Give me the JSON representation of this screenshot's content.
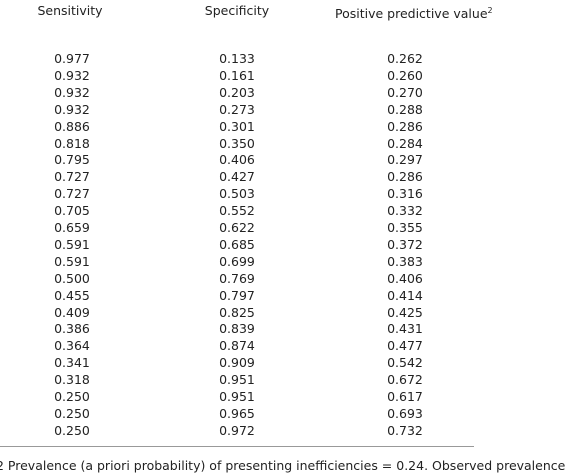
{
  "table": {
    "headers": [
      "Sensitivity",
      "Specificity",
      "Positive predictive value"
    ],
    "header_note": "2",
    "rows": [
      [
        "0.977",
        "0.133",
        "0.262"
      ],
      [
        "0.932",
        "0.161",
        "0.260"
      ],
      [
        "0.932",
        "0.203",
        "0.270"
      ],
      [
        "0.932",
        "0.273",
        "0.288"
      ],
      [
        "0.886",
        "0.301",
        "0.286"
      ],
      [
        "0.818",
        "0.350",
        "0.284"
      ],
      [
        "0.795",
        "0.406",
        "0.297"
      ],
      [
        "0.727",
        "0.427",
        "0.286"
      ],
      [
        "0.727",
        "0.503",
        "0.316"
      ],
      [
        "0.705",
        "0.552",
        "0.332"
      ],
      [
        "0.659",
        "0.622",
        "0.355"
      ],
      [
        "0.591",
        "0.685",
        "0.372"
      ],
      [
        "0.591",
        "0.699",
        "0.383"
      ],
      [
        "0.500",
        "0.769",
        "0.406"
      ],
      [
        "0.455",
        "0.797",
        "0.414"
      ],
      [
        "0.409",
        "0.825",
        "0.425"
      ],
      [
        "0.386",
        "0.839",
        "0.431"
      ],
      [
        "0.364",
        "0.874",
        "0.477"
      ],
      [
        "0.341",
        "0.909",
        "0.542"
      ],
      [
        "0.318",
        "0.951",
        "0.672"
      ],
      [
        "0.250",
        "0.951",
        "0.617"
      ],
      [
        "0.250",
        "0.965",
        "0.693"
      ],
      [
        "0.250",
        "0.972",
        "0.732"
      ]
    ],
    "footnote": "2 Prevalence (a priori probability) of presenting inefficiencies = 0.24. Observed prevalence"
  }
}
